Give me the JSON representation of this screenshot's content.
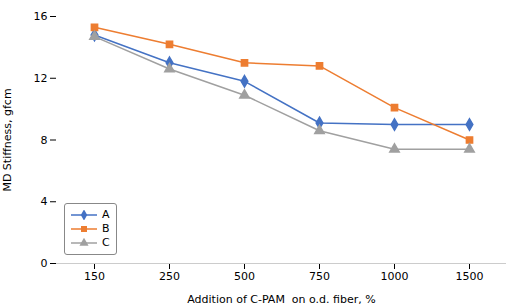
{
  "chart_data": {
    "type": "line",
    "xlabel": "Addition of C-PAM  on o.d. fiber, %",
    "ylabel": "MD Stiffness, gfcm",
    "categories": [
      "150",
      "250",
      "500",
      "750",
      "1000",
      "1500"
    ],
    "series": [
      {
        "name": "A",
        "color": "#4472C4",
        "marker": "diamond",
        "values": [
          14.8,
          13.0,
          11.8,
          9.1,
          9.0,
          9.0
        ]
      },
      {
        "name": "B",
        "color": "#ED7D31",
        "marker": "square",
        "values": [
          15.3,
          14.2,
          13.0,
          12.8,
          10.1,
          8.0
        ]
      },
      {
        "name": "C",
        "color": "#A0A0A0",
        "marker": "triangle",
        "values": [
          14.7,
          12.6,
          10.9,
          8.6,
          7.4,
          7.4
        ]
      }
    ],
    "ylim": [
      0,
      16
    ],
    "yticks": [
      0,
      4,
      8,
      12,
      16
    ],
    "grid": false,
    "legend": "lower left"
  }
}
